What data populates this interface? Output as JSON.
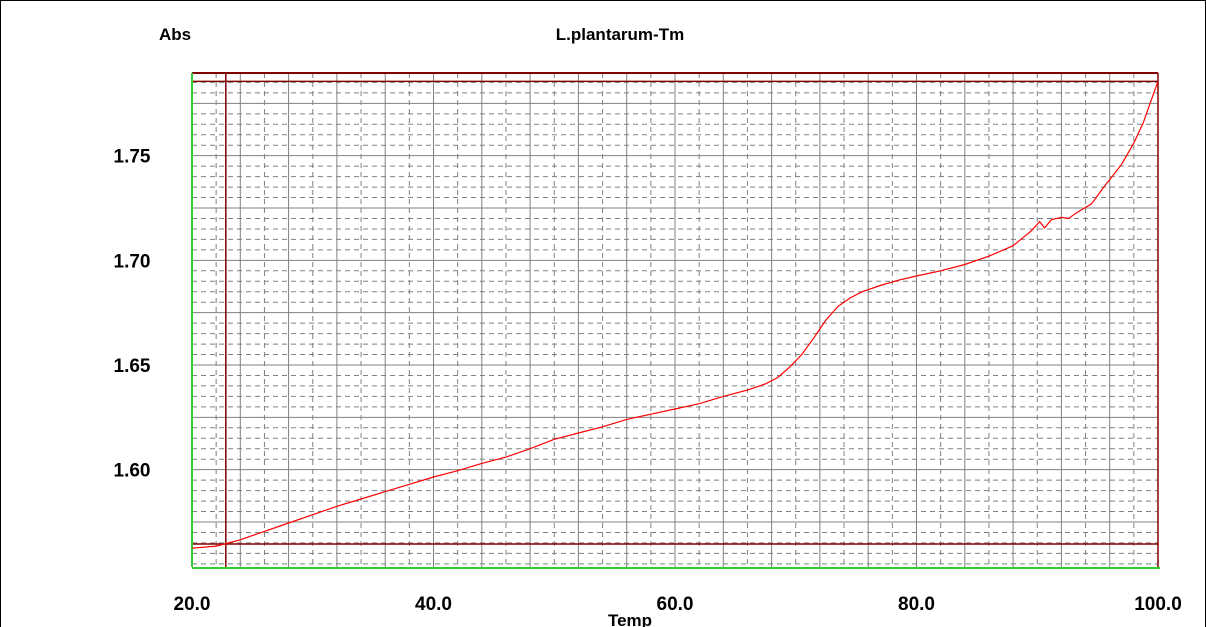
{
  "colors": {
    "background": "#ffffff",
    "frame": "#000000",
    "left_axis": "#33cc33",
    "bottom_axis": "#33cc33",
    "plot_border": "#800000",
    "cursor_lines": "#800000",
    "major_grid": "#808080",
    "minor_grid": "#808080",
    "curve": "#ff0000",
    "text": "#000000"
  },
  "chart_data": {
    "type": "line",
    "title": "L.plantarum-Tm",
    "xlabel": "Temp",
    "ylabel": "Abs",
    "xlim": [
      20.0,
      100.0
    ],
    "ylim": [
      1.5535,
      1.7895
    ],
    "x_ticks": [
      {
        "value": 20,
        "label": "20.0"
      },
      {
        "value": 40,
        "label": "40.0"
      },
      {
        "value": 60,
        "label": "60.0"
      },
      {
        "value": 80,
        "label": "80.0"
      },
      {
        "value": 100,
        "label": "100.0"
      }
    ],
    "y_ticks": [
      {
        "value": 1.6,
        "label": "1.60"
      },
      {
        "value": 1.65,
        "label": "1.65"
      },
      {
        "value": 1.7,
        "label": "1.70"
      },
      {
        "value": 1.75,
        "label": "1.75"
      }
    ],
    "x_major_grid_step": 4,
    "x_minor_grid_step": 2,
    "y_major_grid_step": 0.025,
    "y_minor_grid_step": 0.005,
    "grid": true,
    "vertical_markers": [
      22.8,
      100.0
    ],
    "horizontal_markers": [
      1.5645,
      1.7855
    ],
    "series": [
      {
        "points": [
          [
            20.0,
            1.5625
          ],
          [
            22.0,
            1.5635
          ],
          [
            24.0,
            1.5665
          ],
          [
            26.0,
            1.5705
          ],
          [
            28.0,
            1.5745
          ],
          [
            30.0,
            1.5785
          ],
          [
            32.0,
            1.5825
          ],
          [
            34.0,
            1.586
          ],
          [
            36.0,
            1.5895
          ],
          [
            38.0,
            1.593
          ],
          [
            40.0,
            1.5965
          ],
          [
            42.0,
            1.5995
          ],
          [
            44.0,
            1.603
          ],
          [
            46.0,
            1.606
          ],
          [
            48.0,
            1.61
          ],
          [
            50.0,
            1.6145
          ],
          [
            52.0,
            1.6175
          ],
          [
            54.0,
            1.6205
          ],
          [
            56.0,
            1.624
          ],
          [
            58.0,
            1.6265
          ],
          [
            60.0,
            1.629
          ],
          [
            62.0,
            1.6315
          ],
          [
            64.0,
            1.635
          ],
          [
            66.0,
            1.638
          ],
          [
            67.5,
            1.641
          ],
          [
            68.5,
            1.644
          ],
          [
            69.5,
            1.649
          ],
          [
            70.5,
            1.655
          ],
          [
            71.5,
            1.663
          ],
          [
            72.5,
            1.6715
          ],
          [
            73.5,
            1.678
          ],
          [
            74.5,
            1.682
          ],
          [
            75.5,
            1.685
          ],
          [
            77.0,
            1.688
          ],
          [
            78.5,
            1.6905
          ],
          [
            80.0,
            1.6925
          ],
          [
            82.0,
            1.695
          ],
          [
            84.0,
            1.698
          ],
          [
            86.0,
            1.702
          ],
          [
            88.0,
            1.707
          ],
          [
            89.5,
            1.714
          ],
          [
            90.2,
            1.7185
          ],
          [
            90.6,
            1.7155
          ],
          [
            91.2,
            1.7195
          ],
          [
            92.0,
            1.7205
          ],
          [
            92.6,
            1.72
          ],
          [
            93.2,
            1.7225
          ],
          [
            94.5,
            1.727
          ],
          [
            95.5,
            1.735
          ],
          [
            96.2,
            1.74
          ],
          [
            97.0,
            1.746
          ],
          [
            98.0,
            1.756
          ],
          [
            98.8,
            1.766
          ],
          [
            99.4,
            1.776
          ],
          [
            100.0,
            1.7855
          ]
        ]
      }
    ]
  }
}
